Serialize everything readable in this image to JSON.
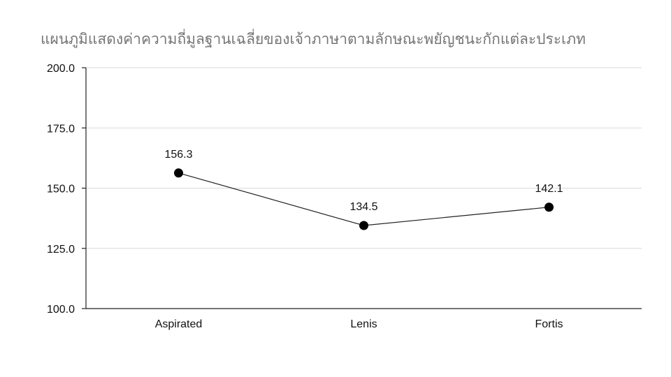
{
  "chart_data": {
    "type": "line",
    "title": "แผนภูมิแสดงค่าความถี่มูลฐานเฉลี่ยของเจ้าภาษาตามลักษณะพยัญชนะกักแต่ละประเภท",
    "xlabel": "",
    "ylabel": "",
    "categories": [
      "Aspirated",
      "Lenis",
      "Fortis"
    ],
    "series": [
      {
        "values": [
          156.3,
          134.5,
          142.1
        ]
      }
    ],
    "data_labels": [
      "156.3",
      "134.5",
      "142.1"
    ],
    "ylim": [
      100,
      200
    ],
    "yticks": [
      100,
      125,
      150,
      175,
      200
    ],
    "ytick_labels": [
      "100.0",
      "125.0",
      "150.0",
      "175.0",
      "200.0"
    ],
    "grid": true,
    "legend": "none",
    "colors": {
      "line": "#222222",
      "marker": "#000000",
      "grid": "#d9d9d9",
      "title": "#757575"
    }
  }
}
